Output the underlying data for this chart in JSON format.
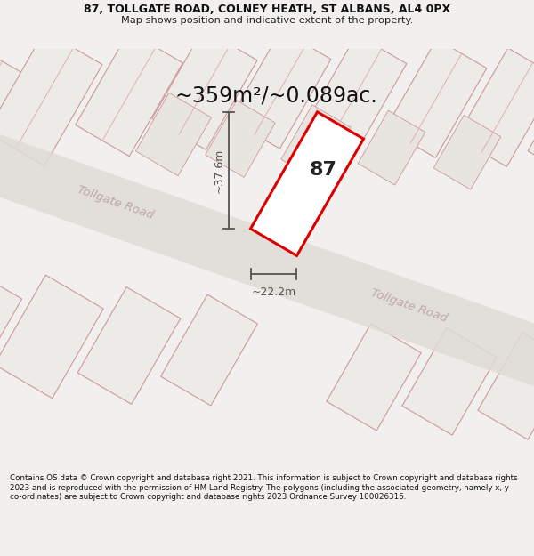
{
  "title": "87, TOLLGATE ROAD, COLNEY HEATH, ST ALBANS, AL4 0PX",
  "subtitle": "Map shows position and indicative extent of the property.",
  "area_text": "~359m²/~0.089ac.",
  "property_number": "87",
  "width_label": "~22.2m",
  "height_label": "~37.6m",
  "footer_text": "Contains OS data © Crown copyright and database right 2021. This information is subject to Crown copyright and database rights 2023 and is reproduced with the permission of HM Land Registry. The polygons (including the associated geometry, namely x, y co-ordinates) are subject to Crown copyright and database rights 2023 Ordnance Survey 100026316.",
  "bg_color": "#f2f0ee",
  "map_bg_color": "#f8f6f4",
  "property_outline_color": "#dd0000",
  "property_fill_color": "#ffffff",
  "dim_line_color": "#555555",
  "bldg_fill": "#edebe8",
  "bldg_edge": "#cc9999",
  "road_fill": "#e0dbd6",
  "road_label_color": "#c0a8a4",
  "road_label_1": "Tollgate Road",
  "road_label_2": "Tollgate Road",
  "ang": -30
}
